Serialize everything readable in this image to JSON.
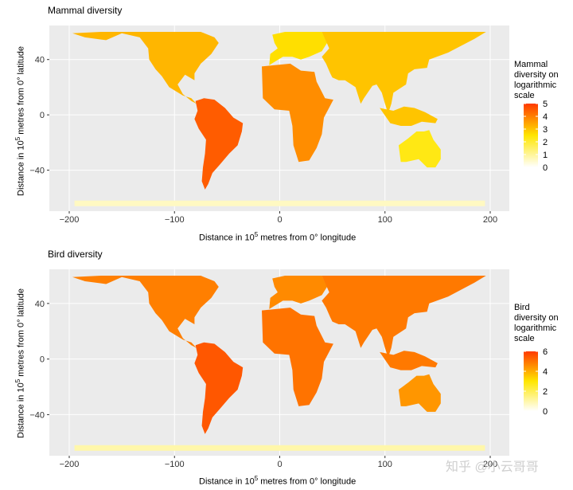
{
  "panels": [
    {
      "title": "Mammal diversity",
      "y_title_prefix": "Distance in 10",
      "y_title_sup": "5",
      "y_title_suffix": " metres from 0° latitude",
      "x_title_prefix": "Distance in 10",
      "x_title_sup": "5",
      "x_title_suffix": " metres from 0° longitude",
      "legend": {
        "title_lines": [
          "Mammal",
          "diversity on",
          "logarithmic",
          "scale"
        ],
        "ticks": [
          "5",
          "4",
          "3",
          "2",
          "1",
          "0"
        ],
        "range": [
          0,
          5
        ]
      }
    },
    {
      "title": "Bird diversity",
      "y_title_prefix": "Distance in 10",
      "y_title_sup": "5",
      "y_title_suffix": " metres from 0° latitude",
      "x_title_prefix": "Distance in 10",
      "x_title_sup": "5",
      "x_title_suffix": " metres from 0° longitude",
      "legend": {
        "title_lines": [
          "Bird",
          "diversity on",
          "logarithmic",
          "scale"
        ],
        "ticks": [
          "6",
          "4",
          "2",
          "0"
        ],
        "range": [
          0,
          6
        ]
      }
    }
  ],
  "chart_data": [
    {
      "type": "heatmap",
      "title": "Mammal diversity",
      "xlabel": "Distance in 10^5 metres from 0° longitude",
      "ylabel": "Distance in 10^5 metres from 0° latitude",
      "x_ticks": [
        -200,
        -100,
        0,
        100,
        200
      ],
      "y_ticks": [
        -40,
        0,
        40
      ],
      "xlim": [
        -200,
        200
      ],
      "ylim": [
        -65,
        60
      ],
      "color_scale": {
        "low": "#ffffff",
        "mid": "#ffe600",
        "high": "#ff3a00",
        "range": [
          0,
          5
        ]
      },
      "grid": true,
      "legend_position": "right",
      "regions": [
        {
          "name": "north-america",
          "value": 3.2
        },
        {
          "name": "south-america",
          "value": 4.5
        },
        {
          "name": "europe",
          "value": 2.6
        },
        {
          "name": "africa",
          "value": 3.8
        },
        {
          "name": "asia",
          "value": 3.0
        },
        {
          "name": "australia",
          "value": 2.3
        },
        {
          "name": "antarctica",
          "value": 0.6
        }
      ]
    },
    {
      "type": "heatmap",
      "title": "Bird diversity",
      "xlabel": "Distance in 10^5 metres from 0° longitude",
      "ylabel": "Distance in 10^5 metres from 0° latitude",
      "x_ticks": [
        -200,
        -100,
        0,
        100,
        200
      ],
      "y_ticks": [
        -40,
        0,
        40
      ],
      "xlim": [
        -200,
        200
      ],
      "ylim": [
        -65,
        60
      ],
      "color_scale": {
        "low": "#ffffff",
        "mid": "#ffe600",
        "high": "#ff3a00",
        "range": [
          0,
          6
        ]
      },
      "grid": true,
      "legend_position": "right",
      "regions": [
        {
          "name": "north-america",
          "value": 4.8
        },
        {
          "name": "south-america",
          "value": 5.5
        },
        {
          "name": "europe",
          "value": 4.6
        },
        {
          "name": "africa",
          "value": 5.0
        },
        {
          "name": "asia",
          "value": 4.9
        },
        {
          "name": "australia",
          "value": 4.4
        },
        {
          "name": "antarctica",
          "value": 1.0
        }
      ]
    }
  ],
  "watermark": "知乎 @小云哥哥"
}
